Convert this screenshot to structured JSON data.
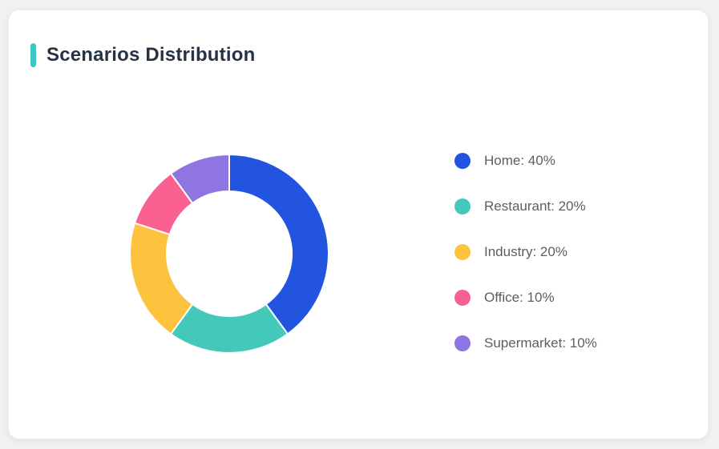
{
  "page": {
    "background": "#eff1f2"
  },
  "card": {
    "background": "#ffffff",
    "accent_color": "#3ec6c0"
  },
  "header": {
    "title": "Scenarios Distribution"
  },
  "chart_data": {
    "type": "pie",
    "subtype": "donut",
    "title": "Scenarios Distribution",
    "categories": [
      "Home",
      "Restaurant",
      "Industry",
      "Office",
      "Supermarket"
    ],
    "values": [
      40,
      20,
      20,
      10,
      10
    ],
    "unit": "%",
    "colors": [
      "#2254df",
      "#44c8ba",
      "#fdc33e",
      "#fa6190",
      "#8f75e1"
    ],
    "start_angle_deg": 0,
    "direction": "clockwise",
    "inner_radius_ratio": 0.63,
    "segment_gap_color": "#ffffff",
    "legend_position": "right",
    "legend_items": [
      {
        "label": "Home: 40%",
        "color": "#2254df"
      },
      {
        "label": "Restaurant: 20%",
        "color": "#44c8ba"
      },
      {
        "label": "Industry: 20%",
        "color": "#fdc33e"
      },
      {
        "label": "Office: 10%",
        "color": "#fa6190"
      },
      {
        "label": "Supermarket: 10%",
        "color": "#8f75e1"
      }
    ]
  }
}
